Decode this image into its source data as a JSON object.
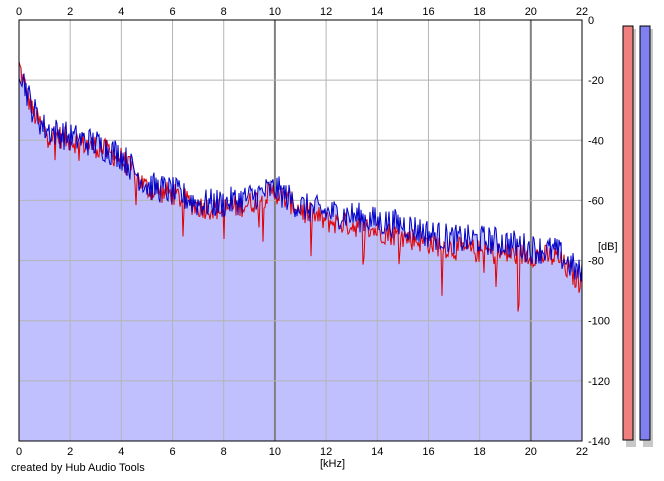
{
  "credit": "created by Hub Audio Tools",
  "colors": {
    "background": "#ffffff",
    "plot_fill": "#c0c0ff",
    "grid": "#b4b4b4",
    "grid_major": "#808080",
    "left_channel": "#e00000",
    "right_channel": "#0000c8",
    "left_meter": "#f08080",
    "right_meter": "#8080f0"
  },
  "chart_data": {
    "type": "area",
    "title": "",
    "xlabel": "[kHz]",
    "ylabel": "[dB]",
    "xlim": [
      0,
      22
    ],
    "ylim": [
      -140,
      0
    ],
    "x_ticks": [
      "0",
      "2",
      "4",
      "6",
      "8",
      "10",
      "12",
      "14",
      "16",
      "18",
      "20",
      "22"
    ],
    "y_ticks": [
      "0",
      "-20",
      "-40",
      "-60",
      "-80",
      "-100",
      "-120",
      "-140"
    ],
    "x_ticks_on_top": true,
    "grid": true,
    "x": [
      0,
      0.5,
      1,
      2,
      3,
      4,
      5,
      6,
      7,
      8,
      9,
      10,
      11,
      12,
      13,
      14,
      15,
      16,
      17,
      18,
      19,
      20,
      21,
      22
    ],
    "series": [
      {
        "values": [
          -15,
          -30,
          -37,
          -40,
          -42,
          -46,
          -56,
          -58,
          -62,
          -63,
          -61,
          -57,
          -63,
          -67,
          -68,
          -70,
          -72,
          -74,
          -76,
          -77,
          -78,
          -78,
          -79,
          -88
        ]
      },
      {
        "values": [
          -15,
          -29,
          -36,
          -39,
          -41,
          -45,
          -55,
          -57,
          -61,
          -61,
          -59,
          -56,
          -62,
          -64,
          -65,
          -67,
          -68,
          -71,
          -73,
          -73,
          -74,
          -76,
          -77,
          -85
        ]
      }
    ],
    "meters": [
      "left",
      "right"
    ]
  }
}
